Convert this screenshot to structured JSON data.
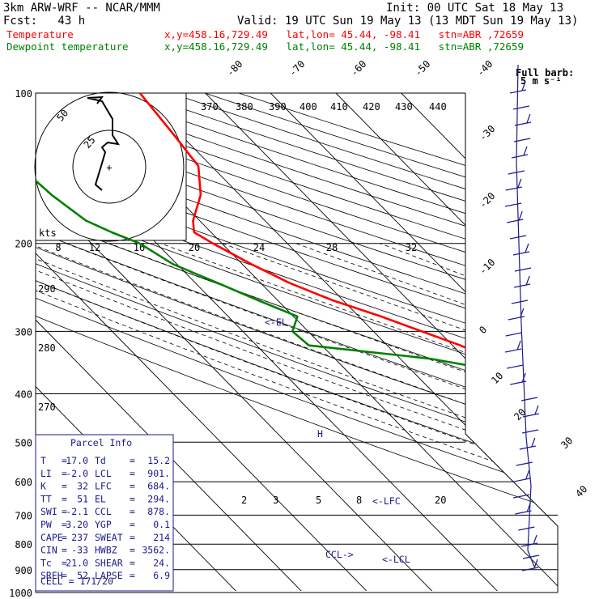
{
  "header": {
    "model": "3km ARW-WRF -- NCAR/MMM",
    "init": "Init: 00 UTC Sat 18 May 13",
    "fcst": "Fcst:   43 h",
    "valid": "Valid: 19 UTC Sun 19 May 13 (13 MDT Sun 19 May 13)",
    "temp_label": "Temperature",
    "temp_loc": "x,y=458.16,729.49   lat,lon= 45.44, -98.41   stn=ABR ,72659",
    "dew_label": "Dewpoint temperature",
    "dew_loc": "x,y=458.16,729.49   lat,lon= 45.44, -98.41   stn=ABR ,72659"
  },
  "colors": {
    "temperature": "#ff0000",
    "dewpoint": "#008000",
    "parcel": "#1a1a8c",
    "header_temp": "#ff0000",
    "header_dew": "#008000"
  },
  "wind_key": {
    "line1": "Full barb:",
    "line2": "5 m s⁻¹"
  },
  "chart_data": {
    "type": "line",
    "pressure_levels": [
      {
        "label": "100",
        "p": 100
      },
      {
        "label": "200",
        "p": 200
      },
      {
        "label": "300",
        "p": 300
      },
      {
        "label": "400",
        "p": 400
      },
      {
        "label": "500",
        "p": 500
      },
      {
        "label": "600",
        "p": 600
      },
      {
        "label": "700",
        "p": 700
      },
      {
        "label": "800",
        "p": 800
      },
      {
        "label": "900",
        "p": 900
      },
      {
        "label": "1000",
        "p": 1000
      }
    ],
    "isotherm_labels": [
      "-80",
      "-70",
      "-60",
      "-50",
      "-40",
      "-30",
      "-20",
      "-10",
      "0",
      "10",
      "20",
      "30",
      "40"
    ],
    "theta_labels": [
      "370",
      "380",
      "390",
      "400",
      "410",
      "420",
      "430",
      "440"
    ],
    "theta_lower_labels": [
      "290",
      "280",
      "270"
    ],
    "mixing_ratio_labels": [
      "2",
      "3",
      "5",
      "8",
      "20"
    ],
    "markers": {
      "el": "<-EL",
      "lfc": "<-LFC",
      "lcl": "<-LCL",
      "ccl": "CCL->"
    },
    "series": [
      {
        "name": "Temperature",
        "p": [
          950,
          935,
          915,
          900,
          880,
          850,
          820,
          800,
          770,
          740,
          700,
          670,
          640,
          600,
          560,
          520,
          480,
          440,
          400,
          360,
          340,
          320,
          300,
          280,
          260,
          240,
          220,
          200,
          190,
          180,
          160,
          140,
          120,
          100
        ],
        "t": [
          13.4,
          15.5,
          17.0,
          16.2,
          14.6,
          12.4,
          10.2,
          8.6,
          6.2,
          3.4,
          0.4,
          -2.0,
          -4.6,
          -8.0,
          -11.4,
          -15.2,
          -19.2,
          -23.6,
          -28.4,
          -33.8,
          -36.2,
          -38.8,
          -42.6,
          -46.6,
          -51.6,
          -55.6,
          -58.6,
          -61.4,
          -62.6,
          -61.0,
          -56.0,
          -52.0,
          -51.0,
          -50.0
        ]
      },
      {
        "name": "Dewpoint temperature",
        "p": [
          950,
          930,
          915,
          900,
          880,
          850,
          820,
          800,
          770,
          740,
          700,
          670,
          640,
          600,
          580,
          560,
          520,
          480,
          440,
          400,
          360,
          340,
          320,
          300,
          280,
          260,
          240,
          220,
          200,
          190,
          180,
          160,
          140,
          120,
          100
        ],
        "t": [
          12.6,
          13.2,
          15.2,
          14.4,
          12.8,
          10.4,
          7.8,
          5.6,
          2.2,
          -1.0,
          -5.8,
          -10.2,
          -13.8,
          -16.4,
          -17.2,
          -16.4,
          -16.6,
          -19.8,
          -24.0,
          -28.8,
          -36.6,
          -45.6,
          -62.0,
          -62.4,
          -59.4,
          -63.0,
          -66.6,
          -70.6,
          -72.6,
          -75.2,
          -77.4,
          -78.8,
          -79.4,
          -83.6,
          -86.2
        ]
      }
    ]
  },
  "hodograph": {
    "label": "kts",
    "rings": [
      {
        "label": "50"
      },
      {
        "label": "25"
      }
    ],
    "speed_labels": [
      "8",
      "12",
      "16",
      "20",
      "24",
      "28",
      "32"
    ]
  },
  "parcel_info": {
    "title": "Parcel Info",
    "rows": [
      {
        "l1": "T",
        "v1": "17.0",
        "l2": "Td",
        "v2": "15.2"
      },
      {
        "l1": "LI",
        "v1": "-2.0",
        "l2": "LCL",
        "v2": "901."
      },
      {
        "l1": "K",
        "v1": "32",
        "l2": "LFC",
        "v2": "684."
      },
      {
        "l1": "TT",
        "v1": "51",
        "l2": "EL",
        "v2": "294."
      },
      {
        "l1": "SWI",
        "v1": "-2.1",
        "l2": "CCL",
        "v2": "878."
      },
      {
        "l1": "PW",
        "v1": "3.20",
        "l2": "YGP",
        "v2": "0.1"
      },
      {
        "l1": "CAPE",
        "v1": "237",
        "l2": "SWEAT",
        "v2": "214"
      },
      {
        "l1": "CIN",
        "v1": "-33",
        "l2": "HWBZ",
        "v2": "3562."
      },
      {
        "l1": "Tc",
        "v1": "21.0",
        "l2": "SHEAR",
        "v2": "24."
      },
      {
        "l1": "SREH",
        "v1": "52",
        "l2": "LAPSE",
        "v2": "6.9"
      }
    ],
    "cell": "CELL = 171/20"
  }
}
